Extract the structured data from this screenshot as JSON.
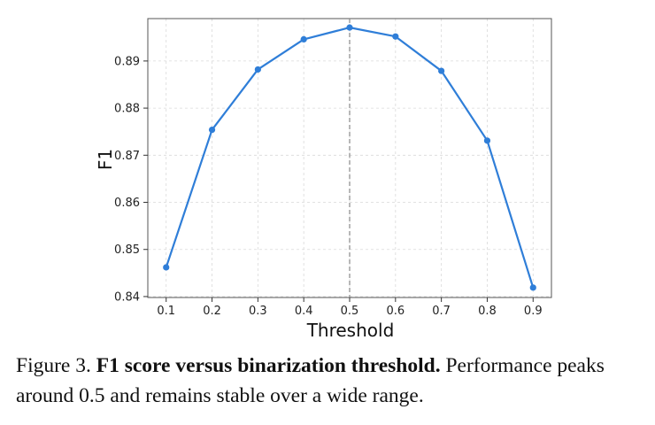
{
  "chart_data": {
    "type": "line",
    "title": "",
    "xlabel": "Threshold",
    "ylabel": "F1",
    "x": [
      0.1,
      0.2,
      0.3,
      0.4,
      0.5,
      0.6,
      0.7,
      0.8,
      0.9
    ],
    "x_tick_labels": [
      "0.1",
      "0.2",
      "0.3",
      "0.4",
      "0.5",
      "0.6",
      "0.7",
      "0.8",
      "0.9"
    ],
    "y_ticks": [
      0.84,
      0.85,
      0.86,
      0.87,
      0.88,
      0.89
    ],
    "y_tick_labels": [
      "0.84",
      "0.85",
      "0.86",
      "0.87",
      "0.88",
      "0.89"
    ],
    "xlim": [
      0.06,
      0.94
    ],
    "ylim": [
      0.8398,
      0.899
    ],
    "series": [
      {
        "values": [
          0.8462,
          0.8754,
          0.8882,
          0.8946,
          0.8971,
          0.8952,
          0.8879,
          0.8731,
          0.8419
        ]
      }
    ],
    "highlight_x": 0.5,
    "grid": true,
    "legend": "none",
    "colors": {
      "line": "#2f7ed8",
      "vline": "#888888",
      "grid": "#d9d9d9",
      "frame": "#555555"
    }
  },
  "caption": {
    "label": "Figure 3.",
    "title": "F1 score versus binarization threshold.",
    "text": "Performance peaks around 0.5 and remains stable over a wide range."
  }
}
